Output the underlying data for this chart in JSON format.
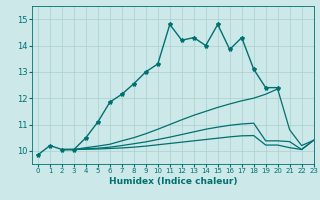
{
  "title": "",
  "xlabel": "Humidex (Indice chaleur)",
  "background_color": "#cde8e8",
  "grid_color": "#a8d0d0",
  "line_color": "#007070",
  "xlim": [
    -0.5,
    23
  ],
  "ylim": [
    9.5,
    15.5
  ],
  "yticks": [
    10,
    11,
    12,
    13,
    14,
    15
  ],
  "xticks": [
    0,
    1,
    2,
    3,
    4,
    5,
    6,
    7,
    8,
    9,
    10,
    11,
    12,
    13,
    14,
    15,
    16,
    17,
    18,
    19,
    20,
    21,
    22,
    23
  ],
  "series": [
    {
      "x": [
        0,
        1,
        2,
        3,
        4,
        5,
        6,
        7,
        8,
        9,
        10,
        11,
        12,
        13,
        14,
        15,
        16,
        17,
        18,
        19,
        20
      ],
      "y": [
        9.85,
        10.2,
        10.05,
        10.05,
        10.5,
        11.1,
        11.85,
        12.15,
        12.55,
        13.0,
        13.3,
        14.8,
        14.2,
        14.3,
        14.0,
        14.8,
        13.85,
        14.3,
        13.1,
        12.4,
        12.4
      ],
      "marker": "*",
      "markersize": 3.0,
      "lw": 1.0
    },
    {
      "x": [
        2,
        3,
        4,
        5,
        6,
        7,
        8,
        9,
        10,
        11,
        12,
        13,
        14,
        15,
        16,
        17,
        18,
        19,
        20,
        21,
        22,
        23
      ],
      "y": [
        10.05,
        10.05,
        10.12,
        10.18,
        10.25,
        10.38,
        10.5,
        10.65,
        10.82,
        11.0,
        11.18,
        11.35,
        11.5,
        11.65,
        11.78,
        11.9,
        12.0,
        12.15,
        12.35,
        10.8,
        10.2,
        10.4
      ],
      "marker": null,
      "markersize": 0,
      "lw": 0.9
    },
    {
      "x": [
        2,
        3,
        4,
        5,
        6,
        7,
        8,
        9,
        10,
        11,
        12,
        13,
        14,
        15,
        16,
        17,
        18,
        19,
        20,
        21,
        22,
        23
      ],
      "y": [
        10.05,
        10.05,
        10.08,
        10.1,
        10.14,
        10.2,
        10.27,
        10.34,
        10.43,
        10.52,
        10.62,
        10.72,
        10.82,
        10.9,
        10.97,
        11.02,
        11.05,
        10.38,
        10.38,
        10.35,
        10.05,
        10.4
      ],
      "marker": null,
      "markersize": 0,
      "lw": 0.9
    },
    {
      "x": [
        2,
        3,
        4,
        5,
        6,
        7,
        8,
        9,
        10,
        11,
        12,
        13,
        14,
        15,
        16,
        17,
        18,
        19,
        20,
        21,
        22,
        23
      ],
      "y": [
        10.05,
        10.05,
        10.06,
        10.07,
        10.09,
        10.11,
        10.14,
        10.18,
        10.23,
        10.28,
        10.33,
        10.38,
        10.43,
        10.48,
        10.53,
        10.57,
        10.58,
        10.22,
        10.22,
        10.12,
        10.05,
        10.4
      ],
      "marker": null,
      "markersize": 0,
      "lw": 0.9
    }
  ]
}
